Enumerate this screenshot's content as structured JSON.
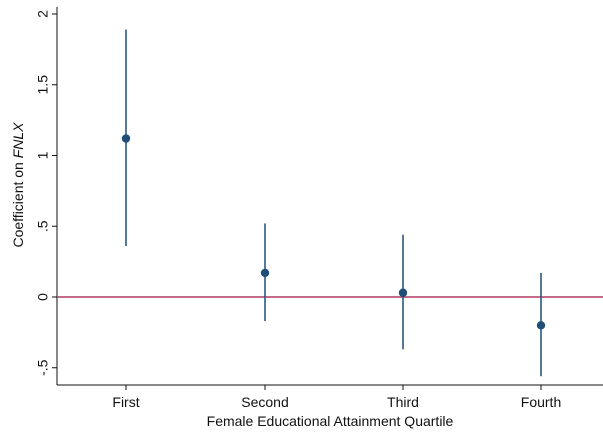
{
  "chart_data": {
    "type": "scatter",
    "subtype": "coefficient-plot-with-confidence-intervals",
    "categories": [
      "First",
      "Second",
      "Third",
      "Fourth"
    ],
    "series": [
      {
        "values": [
          1.12,
          0.17,
          0.03,
          -0.2
        ],
        "ci_lower": [
          0.36,
          -0.17,
          -0.37,
          -0.56
        ],
        "ci_upper": [
          1.89,
          0.52,
          0.44,
          0.17
        ],
        "color": "#1f4e79"
      }
    ],
    "xlabel": "Female Educational Attainment Quartile",
    "ylabel_prefix": "Coefficient on ",
    "ylabel_italic": "FNLX",
    "ylim": [
      -0.58,
      2.05
    ],
    "yticks": [
      -0.5,
      0,
      0.5,
      1,
      1.5,
      2
    ],
    "ytick_labels": [
      "-.5",
      "0",
      ".5",
      "1",
      "1.5",
      "2"
    ],
    "reference_line": {
      "y": 0,
      "color": "#b03a63"
    },
    "grid": false,
    "axis_color": "#111111"
  }
}
